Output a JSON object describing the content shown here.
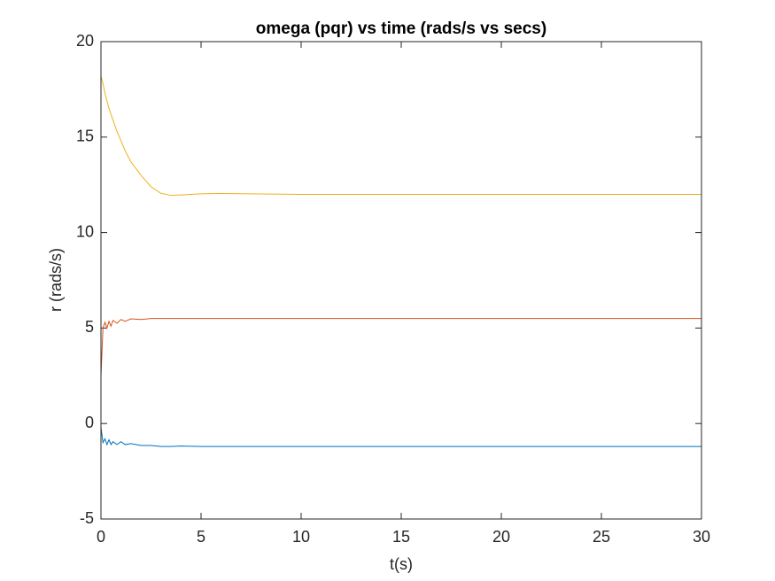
{
  "chart_data": {
    "type": "line",
    "title": "omega (pqr) vs time (rads/s vs secs)",
    "x_label": "t(s)",
    "y_label": "r (rads/s)",
    "x": [
      0,
      0.1,
      0.2,
      0.3,
      0.4,
      0.5,
      0.6,
      0.8,
      1.0,
      1.2,
      1.5,
      2,
      2.5,
      3,
      3.5,
      4,
      5,
      6,
      8,
      10,
      15,
      20,
      25,
      30
    ],
    "series": [
      {
        "color": "#0072bd",
        "values": [
          -0.2,
          -1.0,
          -0.8,
          -1.1,
          -0.85,
          -1.1,
          -0.95,
          -1.1,
          -0.95,
          -1.1,
          -1.05,
          -1.15,
          -1.15,
          -1.2,
          -1.2,
          -1.18,
          -1.2,
          -1.2,
          -1.2,
          -1.2,
          -1.2,
          -1.2,
          -1.2,
          -1.2
        ]
      },
      {
        "color": "#d95319",
        "values": [
          2.5,
          5.0,
          5.3,
          5.0,
          5.35,
          5.1,
          5.4,
          5.25,
          5.45,
          5.35,
          5.48,
          5.45,
          5.5,
          5.5,
          5.5,
          5.5,
          5.5,
          5.5,
          5.5,
          5.5,
          5.5,
          5.5,
          5.5,
          5.5
        ]
      },
      {
        "color": "#edb120",
        "values": [
          18.2,
          17.8,
          17.3,
          16.9,
          16.5,
          16.2,
          15.9,
          15.3,
          14.8,
          14.3,
          13.7,
          13.0,
          12.4,
          12.05,
          11.95,
          11.97,
          12.03,
          12.05,
          12.02,
          12.0,
          12.0,
          12.0,
          12.0,
          12.0
        ]
      }
    ],
    "xlim": [
      0,
      30
    ],
    "xticks": [
      0,
      5,
      10,
      15,
      20,
      25,
      30
    ],
    "ylim": [
      -5,
      20
    ],
    "yticks": [
      -5,
      0,
      5,
      10,
      15,
      20
    ],
    "grid": false
  }
}
